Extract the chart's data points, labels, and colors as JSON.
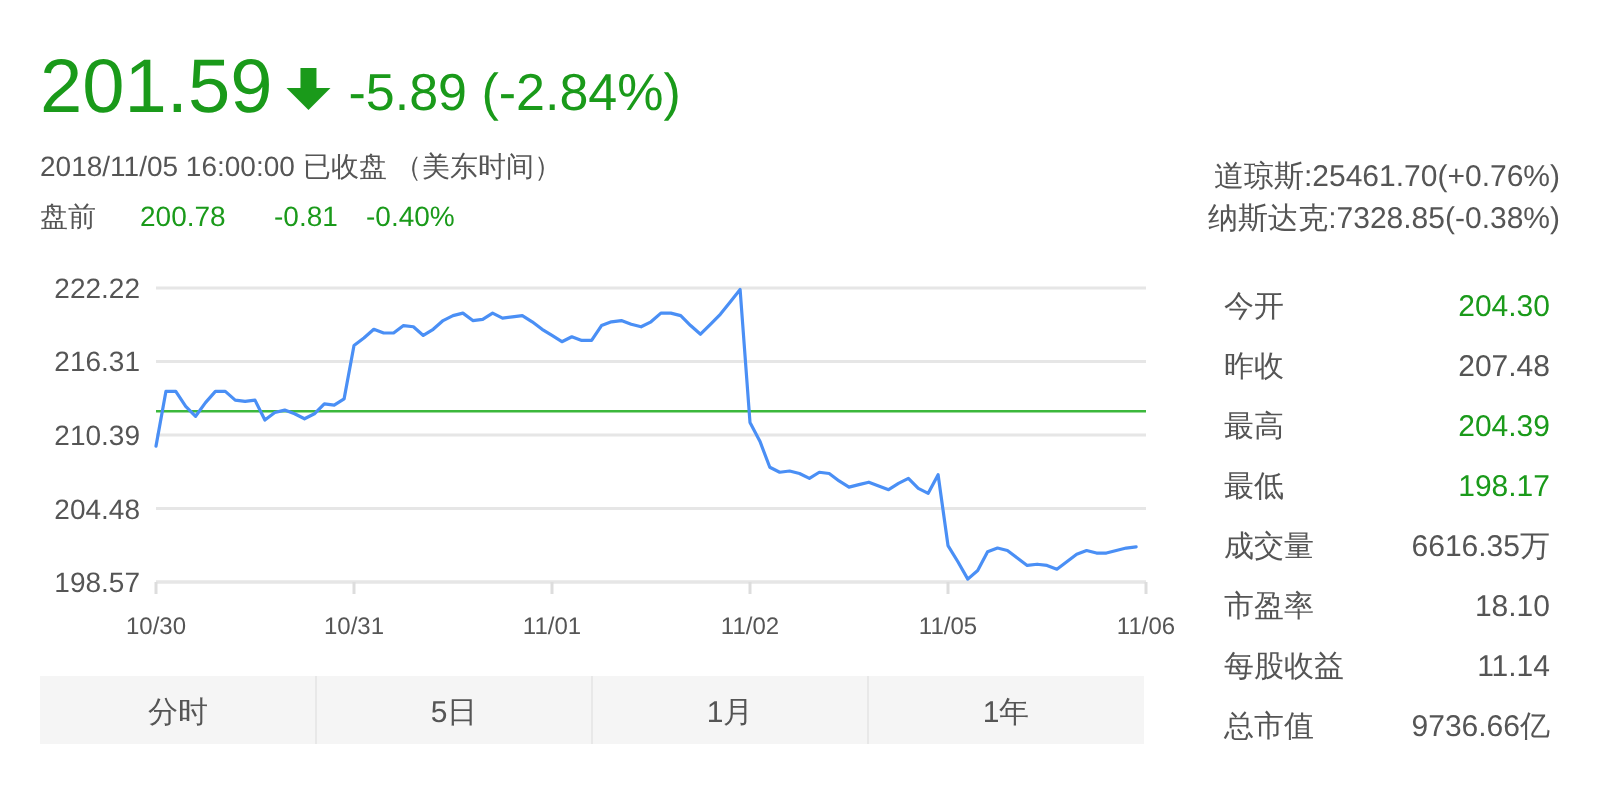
{
  "chart_data": [
    {
      "type": "other",
      "title": "201.59",
      "subtitle": "2018/11/05 16:00:00   已收盘   （美东时间）",
      "annotations": [
        "-5.89 (-2.84%)",
        "盘前",
        "200.78",
        "-0.81",
        "-0.40%"
      ]
    },
    {
      "type": "line",
      "categories": [
        "10/30",
        null,
        null,
        null,
        null,
        null,
        null,
        null,
        null,
        null,
        null,
        null,
        null,
        null,
        null,
        null,
        null,
        null,
        null,
        null,
        "10/31",
        null,
        null,
        null,
        null,
        null,
        null,
        null,
        null,
        null,
        null,
        null,
        null,
        null,
        null,
        null,
        null,
        null,
        null,
        null,
        "11/01",
        null,
        null,
        null,
        null,
        null,
        null,
        null,
        null,
        null,
        null,
        null,
        null,
        null,
        null,
        null,
        null,
        null,
        null,
        null,
        "11/02",
        null,
        null,
        null,
        null,
        null,
        null,
        null,
        null,
        null,
        null,
        null,
        null,
        null,
        null,
        null,
        null,
        null,
        null,
        null,
        "11/05",
        null,
        null,
        null,
        null,
        null,
        null,
        null,
        null,
        null,
        null,
        null,
        null,
        null,
        null,
        null,
        null,
        null,
        null,
        null,
        "11/06"
      ],
      "series": [
        {
          "color": "#4a8ff5",
          "values": [
            209.5,
            213.9,
            213.9,
            212.7,
            211.9,
            213.0,
            213.9,
            213.9,
            213.2,
            213.1,
            213.2,
            211.6,
            212.2,
            212.4,
            212.1,
            211.7,
            212.1,
            212.9,
            212.8,
            213.3,
            217.6,
            218.2,
            218.9,
            218.6,
            218.6,
            219.2,
            219.1,
            218.4,
            218.9,
            219.6,
            220.0,
            220.2,
            219.6,
            219.7,
            220.2,
            219.8,
            219.9,
            220.0,
            219.5,
            218.9,
            218.4,
            217.9,
            218.3,
            218.0,
            218.0,
            219.2,
            219.5,
            219.6,
            219.3,
            219.1,
            219.5,
            220.2,
            220.2,
            220.0,
            219.2,
            218.5,
            219.3,
            220.1,
            221.1,
            222.1,
            211.4,
            209.9,
            207.8,
            207.4,
            207.5,
            207.3,
            206.9,
            207.4,
            207.3,
            206.7,
            206.2,
            206.4,
            206.6,
            206.3,
            206.0,
            206.5,
            206.9,
            206.1,
            205.7,
            207.2,
            201.5,
            200.2,
            198.8,
            199.5,
            201.0,
            201.3,
            201.1,
            200.5,
            199.9,
            200.0,
            199.9,
            199.6,
            200.2,
            200.8,
            201.1,
            200.9,
            200.9,
            201.1,
            201.3,
            201.4,
            null
          ]
        }
      ],
      "ylim": [
        198.57,
        222.22
      ],
      "yticks": [
        {
          "value": 198.57,
          "label": "198.57"
        },
        {
          "value": 204.48,
          "label": "204.48"
        },
        {
          "value": 210.39,
          "label": "210.39"
        },
        {
          "value": 216.31,
          "label": "216.31"
        },
        {
          "value": 222.22,
          "label": "222.22"
        }
      ],
      "ref_lines": [
        {
          "axis": "y",
          "value": 212.3,
          "color": "#3cb83c"
        }
      ],
      "grid": "y",
      "marker": "none",
      "line_style": "solid"
    },
    {
      "type": "other",
      "annotations": [
        "道琼斯:25461.70(+0.76%)",
        "纳斯达克:7328.85(-0.38%)"
      ],
      "categories": [
        "今开",
        "昨收",
        "最高",
        "最低",
        "成交量",
        "市盈率",
        "每股收益",
        "总市值"
      ],
      "value_labels": [
        "204.30",
        "207.48",
        "204.39",
        "198.17",
        "6616.35万",
        "18.10",
        "11.14",
        "9736.66亿"
      ],
      "colors": [
        "#1a9a1a",
        "#555555",
        "#1a9a1a",
        "#1a9a1a",
        "#555555",
        "#555555",
        "#555555",
        "#555555"
      ]
    },
    {
      "type": "other",
      "categories": [
        "分时",
        "5日",
        "1月",
        "1年"
      ]
    }
  ]
}
